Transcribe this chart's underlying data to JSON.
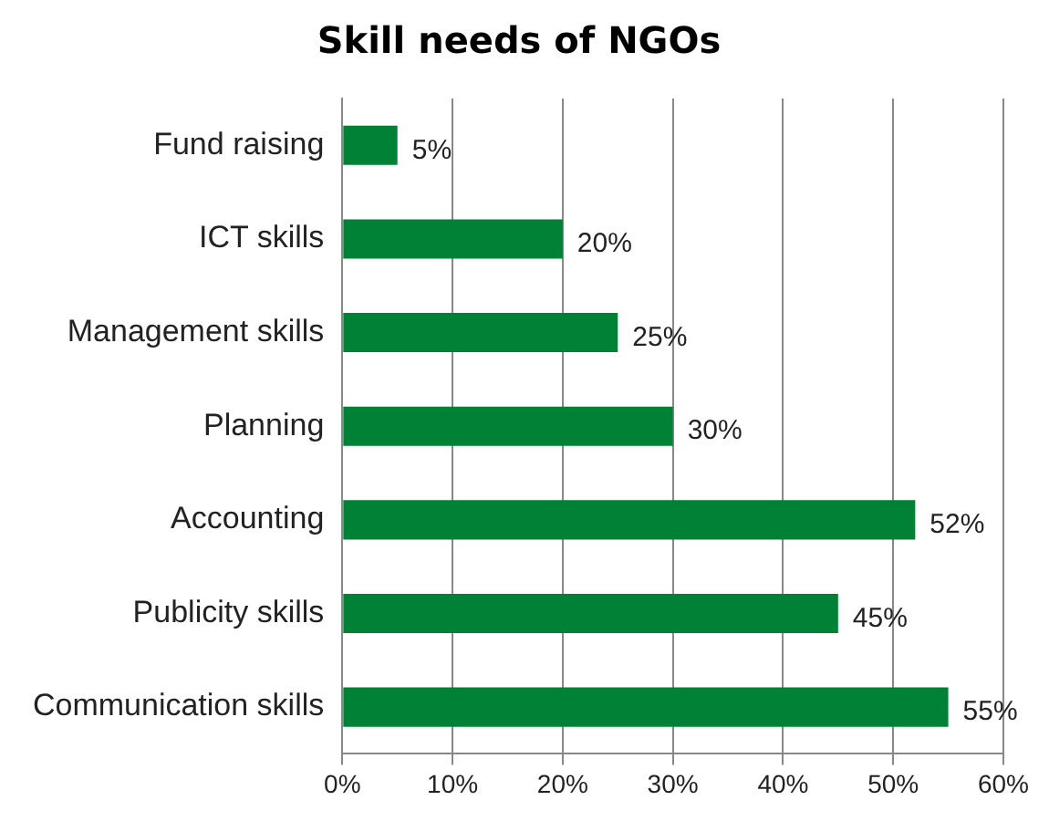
{
  "chart_data": {
    "type": "bar",
    "orientation": "horizontal",
    "title": "Skill needs of NGOs",
    "categories": [
      "Fund raising",
      "ICT skills",
      "Management skills",
      "Planning",
      "Accounting",
      "Publicity skills",
      "Communication skills"
    ],
    "values": [
      5,
      20,
      25,
      30,
      52,
      45,
      55
    ],
    "value_labels": [
      "5%",
      "20%",
      "25%",
      "30%",
      "52%",
      "45%",
      "55%"
    ],
    "color": "#008236",
    "xlim": [
      0,
      60
    ],
    "xticks": [
      {
        "value": 0,
        "label": "0%"
      },
      {
        "value": 10,
        "label": "10%"
      },
      {
        "value": 20,
        "label": "20%"
      },
      {
        "value": 30,
        "label": "30%"
      },
      {
        "value": 40,
        "label": "40%"
      },
      {
        "value": 50,
        "label": "50%"
      },
      {
        "value": 60,
        "label": "60%"
      }
    ],
    "grid": "x",
    "legend": false
  }
}
